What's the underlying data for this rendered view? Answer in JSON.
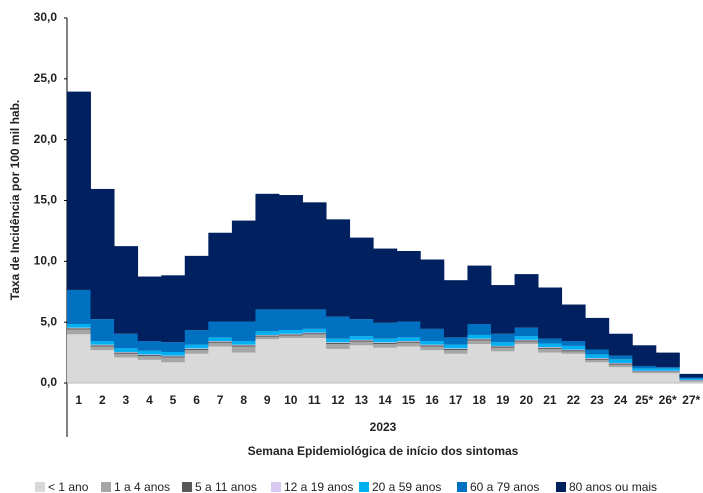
{
  "chart_data": {
    "type": "bar",
    "stacked": true,
    "y_label": "Taxa de Incidência por 100 mil hab.",
    "x_group_label": "2023",
    "x_label": "Semana Epidemiológica de início dos sintomas",
    "categories": [
      "1",
      "2",
      "3",
      "4",
      "5",
      "6",
      "7",
      "8",
      "9",
      "10",
      "11",
      "12",
      "13",
      "14",
      "15",
      "16",
      "17",
      "18",
      "19",
      "20",
      "21",
      "22",
      "23",
      "24",
      "25*",
      "26*",
      "27*"
    ],
    "ylim": [
      0,
      30
    ],
    "yticks": [
      {
        "value": 0,
        "label": "0,0"
      },
      {
        "value": 5,
        "label": "5,0"
      },
      {
        "value": 10,
        "label": "10,0"
      },
      {
        "value": 15,
        "label": "15,0"
      },
      {
        "value": 20,
        "label": "20,0"
      },
      {
        "value": 25,
        "label": "25,0"
      },
      {
        "value": 30,
        "label": "30,0"
      }
    ],
    "series": [
      {
        "name": "< 1 ano",
        "color": "#d9d9d9",
        "values": [
          4.0,
          2.7,
          2.1,
          1.9,
          1.7,
          2.4,
          3.0,
          2.5,
          3.6,
          3.7,
          3.7,
          2.8,
          3.1,
          2.9,
          3.0,
          2.7,
          2.4,
          3.2,
          2.6,
          3.2,
          2.5,
          2.4,
          1.7,
          1.3,
          0.8,
          0.8,
          0.1
        ]
      },
      {
        "name": "1 a 4 anos",
        "color": "#a6a6a6",
        "values": [
          0.4,
          0.3,
          0.3,
          0.3,
          0.4,
          0.3,
          0.3,
          0.5,
          0.2,
          0.2,
          0.3,
          0.4,
          0.3,
          0.3,
          0.3,
          0.3,
          0.3,
          0.3,
          0.3,
          0.2,
          0.3,
          0.2,
          0.2,
          0.2,
          0.1,
          0.1,
          0.05
        ]
      },
      {
        "name": "5 a 11 anos",
        "color": "#595959",
        "values": [
          0.1,
          0.1,
          0.1,
          0.1,
          0.1,
          0.1,
          0.1,
          0.1,
          0.1,
          0.1,
          0.1,
          0.1,
          0.1,
          0.1,
          0.1,
          0.1,
          0.1,
          0.1,
          0.1,
          0.1,
          0.1,
          0.1,
          0.1,
          0.1,
          0.05,
          0.05,
          0.05
        ]
      },
      {
        "name": "12 a 19 anos",
        "color": "#d9c8ef",
        "values": [
          0.05,
          0.05,
          0.05,
          0.05,
          0.05,
          0.05,
          0.05,
          0.05,
          0.05,
          0.05,
          0.05,
          0.05,
          0.05,
          0.05,
          0.05,
          0.05,
          0.05,
          0.05,
          0.05,
          0.05,
          0.05,
          0.05,
          0.05,
          0.05,
          0.05,
          0.05,
          0.05
        ]
      },
      {
        "name": "20 a 59 anos",
        "color": "#00b0f0",
        "values": [
          0.3,
          0.3,
          0.3,
          0.3,
          0.3,
          0.3,
          0.3,
          0.3,
          0.3,
          0.3,
          0.3,
          0.3,
          0.3,
          0.3,
          0.3,
          0.3,
          0.3,
          0.3,
          0.3,
          0.3,
          0.3,
          0.3,
          0.3,
          0.3,
          0.2,
          0.2,
          0.1
        ]
      },
      {
        "name": "60 a 79 anos",
        "color": "#0070c0",
        "values": [
          2.8,
          1.8,
          1.2,
          0.8,
          0.8,
          1.2,
          1.3,
          1.6,
          1.8,
          1.7,
          1.6,
          1.8,
          1.4,
          1.3,
          1.3,
          1.0,
          0.6,
          0.9,
          0.7,
          0.7,
          0.4,
          0.4,
          0.4,
          0.3,
          0.2,
          0.1,
          0.1
        ]
      },
      {
        "name": "80 anos ou mais",
        "color": "#002060",
        "values": [
          16.3,
          10.7,
          7.2,
          5.3,
          5.5,
          6.1,
          7.3,
          8.3,
          9.5,
          9.4,
          8.8,
          8.0,
          6.7,
          6.1,
          5.8,
          5.7,
          4.7,
          4.8,
          4.0,
          4.4,
          4.2,
          3.0,
          2.6,
          1.8,
          1.7,
          1.2,
          0.3
        ]
      }
    ]
  }
}
